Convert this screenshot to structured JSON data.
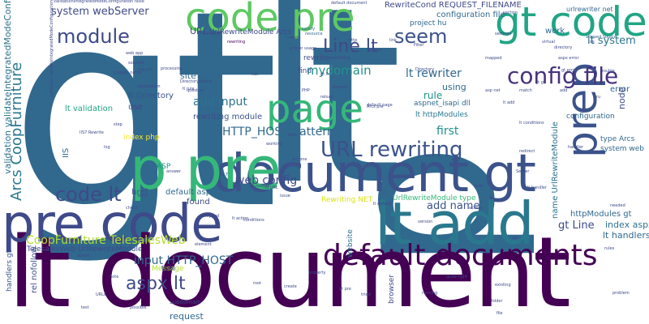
{
  "words": [
    {
      "text": "gt",
      "color": "#31688e"
    },
    {
      "text": "lt",
      "color": "#31688e"
    },
    {
      "text": "document",
      "color": "#440154"
    },
    {
      "text": "p",
      "color": "#31688e"
    },
    {
      "text": "lt document",
      "color": "#440154"
    },
    {
      "text": "document gt",
      "color": "#3b528b"
    },
    {
      "text": "pre code",
      "color": "#3e4a89"
    },
    {
      "text": "lt add",
      "color": "#2a788e"
    },
    {
      "text": "code pre",
      "color": "#5ec962"
    },
    {
      "text": "gt code",
      "color": "#21a585"
    },
    {
      "text": "p pre",
      "color": "#35b779"
    },
    {
      "text": "prep",
      "color": "#3b528b"
    },
    {
      "text": "page",
      "color": "#35b779"
    },
    {
      "text": "default documents",
      "color": "#440154"
    },
    {
      "text": "config file",
      "color": "#46327e"
    },
    {
      "text": "URL rewriting",
      "color": "#3b528b"
    },
    {
      "text": "code lt",
      "color": "#3e4a89"
    },
    {
      "text": "Line lt",
      "color": "#3e4a89"
    },
    {
      "text": "module",
      "color": "#3e4a89"
    },
    {
      "text": "seem",
      "color": "#3b528b"
    },
    {
      "text": "aspx lt",
      "color": "#3e4a89"
    },
    {
      "text": "add input",
      "color": "#2c728e"
    },
    {
      "text": "mydomain",
      "color": "#21918c"
    },
    {
      "text": "lt rewriter",
      "color": "#31688e"
    },
    {
      "text": "HTTP_HOST pattern",
      "color": "#31688e"
    },
    {
      "text": "CoopFurniture TelesalesWeb",
      "color": "#b5de2b"
    },
    {
      "text": "input HTTP_HOST",
      "color": "#31688e"
    },
    {
      "text": "lt system",
      "color": "#2c728e"
    },
    {
      "text": "web config",
      "color": "#3e4a89"
    },
    {
      "text": "add name",
      "color": "#3b528b"
    },
    {
      "text": "system webServer",
      "color": "#3e4a89"
    },
    {
      "text": "Arcs CoopFurniture",
      "color": "#2a788e"
    },
    {
      "text": "first",
      "color": "#21918c"
    },
    {
      "text": "gt Line",
      "color": "#3e4a89"
    },
    {
      "text": "rule",
      "color": "#21918c"
    },
    {
      "text": "index aspx",
      "color": "#2c728e"
    },
    {
      "text": "lt handlers",
      "color": "#31688e"
    },
    {
      "text": "httpModules gt",
      "color": "#31688e"
    },
    {
      "text": "RewriteCond REQUEST_FILENAME",
      "color": "#3e4a89"
    },
    {
      "text": "configuration file",
      "color": "#31688e"
    },
    {
      "text": "project hu",
      "color": "#31688e"
    },
    {
      "text": "UrlRewriteModule Arcs",
      "color": "#3e4a89"
    },
    {
      "text": "lt Directory",
      "color": "#3b528b"
    },
    {
      "text": "rewriting module",
      "color": "#3b528b"
    },
    {
      "text": "lt validation",
      "color": "#21a585"
    },
    {
      "text": "aspnet_isapi dll",
      "color": "#31688e"
    },
    {
      "text": "lt httpModules",
      "color": "#2a788e"
    },
    {
      "text": "index php",
      "color": "#fde725"
    },
    {
      "text": "default aspx",
      "color": "#31688e"
    },
    {
      "text": "href",
      "color": "#3b528b"
    },
    {
      "text": "ASP",
      "color": "#21918c"
    },
    {
      "text": "TelesalesWeb UrlRewriteModule",
      "color": "#3e4a89"
    },
    {
      "text": "Rewriting NET",
      "color": "#d8e219"
    },
    {
      "text": "UrlRewriteModule type",
      "color": "#35b779"
    },
    {
      "text": "Message",
      "color": "#b5de2b"
    },
    {
      "text": "tool",
      "color": "#3e4a89"
    },
    {
      "text": "request",
      "color": "#31688e"
    },
    {
      "text": "rel nofollow",
      "color": "#3b528b"
    },
    {
      "text": "handlers gt",
      "color": "#3b528b"
    },
    {
      "text": "validation validateIntegratedModeConfiguration",
      "color": "#2c728e"
    },
    {
      "text": "URL",
      "color": "#3e4a89"
    },
    {
      "text": "site",
      "color": "#31688e"
    },
    {
      "text": "find",
      "color": "#3e4a89"
    },
    {
      "text": "rewrite",
      "color": "#3e4a89"
    },
    {
      "text": "using",
      "color": "#31688e"
    },
    {
      "text": "error",
      "color": "#31688e"
    },
    {
      "text": "node",
      "color": "#3e4a89"
    },
    {
      "text": "work",
      "color": "#31688e"
    },
    {
      "text": "configuration",
      "color": "#31688e"
    },
    {
      "text": "type Arcs",
      "color": "#31688e"
    },
    {
      "text": "system web",
      "color": "#31688e"
    },
    {
      "text": "name UrlRewriteModule",
      "color": "#2c728e"
    },
    {
      "text": "IIS",
      "color": "#31688e"
    },
    {
      "text": "found",
      "color": "#3e4a89"
    },
    {
      "text": "use",
      "color": "#3e4a89"
    },
    {
      "text": "browser",
      "color": "#3e4a89"
    },
    {
      "text": "website",
      "color": "#2c728e"
    },
    {
      "text": "subdomain",
      "color": "#3e4a89"
    },
    {
      "text": "urlrewriter net",
      "color": "#31688e"
    },
    {
      "text": "validationIntegratedModeConfiguration false",
      "color": "#3e4a89"
    },
    {
      "text": "validation validateIntegratedModeConfiguration",
      "color": "#3e4a89"
    },
    {
      "text": "default document",
      "color": "#3e4a89"
    },
    {
      "text": "rewriting",
      "color": "#440154"
    },
    {
      "text": "DirectoryWatch",
      "color": "#3e4a89"
    },
    {
      "text": "satisfy",
      "color": "#31688e"
    },
    {
      "text": "resource",
      "color": "#31688e"
    },
    {
      "text": "allowed Source",
      "color": "#31688e"
    },
    {
      "text": "proper usage",
      "color": "#3e4a89"
    },
    {
      "text": "web app",
      "color": "#3e4a89"
    },
    {
      "text": "solution",
      "color": "#3e4a89"
    },
    {
      "text": "something",
      "color": "#3e4a89"
    },
    {
      "text": "aspx error",
      "color": "#3e4a89"
    },
    {
      "text": "ru",
      "color": "#3e4a89"
    },
    {
      "text": "virtual",
      "color": "#3e4a89"
    },
    {
      "text": "directory",
      "color": "#3e4a89"
    },
    {
      "text": "server",
      "color": "#3e4a89"
    },
    {
      "text": "mapped",
      "color": "#3e4a89"
    },
    {
      "text": "asp net",
      "color": "#3e4a89"
    },
    {
      "text": "processing",
      "color": "#3e4a89"
    },
    {
      "text": "asp url",
      "color": "#3e4a89"
    },
    {
      "text": "mode",
      "color": "#3e4a89"
    },
    {
      "text": "step",
      "color": "#3e4a89"
    },
    {
      "text": "wrong",
      "color": "#3e4a89"
    },
    {
      "text": "needed",
      "color": "#3e4a89"
    },
    {
      "text": "gt error",
      "color": "#3e4a89"
    },
    {
      "text": "ok",
      "color": "#3e4a89"
    },
    {
      "text": "section",
      "color": "#3e4a89"
    },
    {
      "text": "gt gt",
      "color": "#3e4a89"
    },
    {
      "text": "trouble",
      "color": "#3e4a89"
    },
    {
      "text": "Filter",
      "color": "#3e4a89"
    },
    {
      "text": "Directory",
      "color": "#3e4a89"
    },
    {
      "text": "lt rule",
      "color": "#3e4a89"
    },
    {
      "text": "lt add",
      "color": "#3e4a89"
    },
    {
      "text": "Arcs pre",
      "color": "#3e4a89"
    },
    {
      "text": "link",
      "color": "#3e4a89"
    },
    {
      "text": "PHP",
      "color": "#3e4a89"
    },
    {
      "text": "application",
      "color": "#3e4a89"
    },
    {
      "text": "settings",
      "color": "#3e4a89"
    },
    {
      "text": "module name",
      "color": "#3e4a89"
    },
    {
      "text": "lt handler",
      "color": "#3e4a89"
    },
    {
      "text": "reload",
      "color": "#3e4a89"
    },
    {
      "text": "default page",
      "color": "#3e4a89"
    },
    {
      "text": "question",
      "color": "#3e4a89"
    },
    {
      "text": "Rewrite",
      "color": "#3e4a89"
    },
    {
      "text": "gt lt",
      "color": "#3e4a89"
    },
    {
      "text": "IIS URL",
      "color": "#3e4a89"
    },
    {
      "text": "IIS7 Rewrite",
      "color": "#3e4a89"
    },
    {
      "text": "add",
      "color": "#3e4a89"
    },
    {
      "text": "http",
      "color": "#3e4a89"
    },
    {
      "text": "lt rewrite",
      "color": "#3e4a89"
    },
    {
      "text": "redirect",
      "color": "#3e4a89"
    },
    {
      "text": "anyone",
      "color": "#3e4a89"
    },
    {
      "text": "property",
      "color": "#3e4a89"
    },
    {
      "text": "match",
      "color": "#3e4a89"
    },
    {
      "text": "root",
      "color": "#3e4a89"
    },
    {
      "text": "conditions",
      "color": "#3e4a89"
    },
    {
      "text": "help",
      "color": "#3e4a89"
    },
    {
      "text": "issue",
      "color": "#3e4a89"
    },
    {
      "text": "lt conditions",
      "color": "#3e4a89"
    },
    {
      "text": "running",
      "color": "#3e4a89"
    },
    {
      "text": "access",
      "color": "#3e4a89"
    },
    {
      "text": "file",
      "color": "#3e4a89"
    },
    {
      "text": "check",
      "color": "#3e4a89"
    },
    {
      "text": "element",
      "color": "#3e4a89"
    },
    {
      "text": "answer",
      "color": "#3e4a89"
    },
    {
      "text": "working",
      "color": "#3e4a89"
    },
    {
      "text": "quite right",
      "color": "#3e4a89"
    },
    {
      "text": "lt action",
      "color": "#3e4a89"
    },
    {
      "text": "existing",
      "color": "#3e4a89"
    },
    {
      "text": "handler",
      "color": "#3e4a89"
    },
    {
      "text": "gt pre",
      "color": "#3e4a89"
    },
    {
      "text": "create",
      "color": "#3e4a89"
    },
    {
      "text": "lt default",
      "color": "#3e4a89"
    },
    {
      "text": "Server",
      "color": "#3e4a89"
    },
    {
      "text": "stopped",
      "color": "#3e4a89"
    },
    {
      "text": "IIS 7",
      "color": "#3e4a89"
    },
    {
      "text": "go",
      "color": "#3e4a89"
    },
    {
      "text": "action",
      "color": "#3e4a89"
    },
    {
      "text": "URLs",
      "color": "#3e4a89"
    },
    {
      "text": "look",
      "color": "#3e4a89"
    },
    {
      "text": "folder",
      "color": "#3e4a89"
    },
    {
      "text": "log",
      "color": "#3e4a89"
    },
    {
      "text": "tried",
      "color": "#3e4a89"
    },
    {
      "text": "possible",
      "color": "#3e4a89"
    },
    {
      "text": "block",
      "color": "#3e4a89"
    },
    {
      "text": "test",
      "color": "#3e4a89"
    },
    {
      "text": "rules",
      "color": "#3e4a89"
    },
    {
      "text": "note",
      "color": "#3e4a89"
    },
    {
      "text": "problem",
      "color": "#3e4a89"
    },
    {
      "text": "version",
      "color": "#3e4a89"
    },
    {
      "text": "net",
      "color": "#3e4a89"
    },
    {
      "text": "lt match",
      "color": "#3e4a89"
    },
    {
      "text": "lt system webServer",
      "color": "#3e4a89"
    }
  ]
}
